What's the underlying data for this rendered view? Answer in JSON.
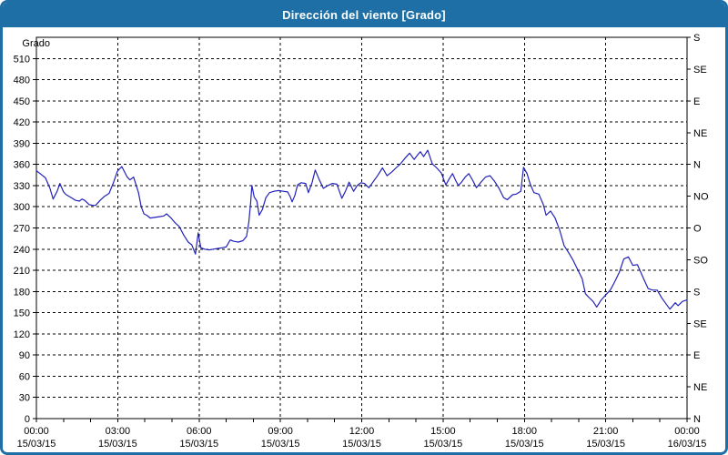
{
  "window": {
    "title": "Dirección del viento [Grado]"
  },
  "theme": {
    "titlebar_bg": "#1d6fa5",
    "frame_border": "#1d6fa5",
    "plot_bg": "#ffffff",
    "grid_color": "#000000",
    "axis_color": "#000000",
    "line_color": "#2222bb",
    "title_text_color": "#ffffff",
    "label_text_color": "#000000"
  },
  "chart_data": {
    "type": "line",
    "title": "Dirección del viento [Grado]",
    "ylabel_left": "Grado",
    "ylim": [
      0,
      540
    ],
    "y_left_ticks": [
      0,
      30,
      60,
      90,
      120,
      150,
      180,
      210,
      240,
      270,
      300,
      330,
      360,
      390,
      420,
      450,
      480,
      510
    ],
    "y_right_ticks": [
      {
        "value": 0,
        "label": "N"
      },
      {
        "value": 45,
        "label": "NE"
      },
      {
        "value": 90,
        "label": "E"
      },
      {
        "value": 135,
        "label": "SE"
      },
      {
        "value": 180,
        "label": "S"
      },
      {
        "value": 225,
        "label": "SO"
      },
      {
        "value": 270,
        "label": "O"
      },
      {
        "value": 315,
        "label": "NO"
      },
      {
        "value": 360,
        "label": "N"
      },
      {
        "value": 405,
        "label": "NE"
      },
      {
        "value": 450,
        "label": "E"
      },
      {
        "value": 495,
        "label": "SE"
      },
      {
        "value": 540,
        "label": "S"
      }
    ],
    "x_hours_range": [
      0,
      24
    ],
    "x_minor_tick_every_hours": 1,
    "x_major_ticks": [
      {
        "hour": 0,
        "time": "00:00",
        "date": "15/03/15"
      },
      {
        "hour": 3,
        "time": "03:00",
        "date": "15/03/15"
      },
      {
        "hour": 6,
        "time": "06:00",
        "date": "15/03/15"
      },
      {
        "hour": 9,
        "time": "09:00",
        "date": "15/03/15"
      },
      {
        "hour": 12,
        "time": "12:00",
        "date": "15/03/15"
      },
      {
        "hour": 15,
        "time": "15:00",
        "date": "15/03/15"
      },
      {
        "hour": 18,
        "time": "18:00",
        "date": "15/03/15"
      },
      {
        "hour": 21,
        "time": "21:00",
        "date": "15/03/15"
      },
      {
        "hour": 24,
        "time": "00:00",
        "date": "16/03/15"
      }
    ],
    "grid": "dashed",
    "series": [
      {
        "name": "Dirección del viento",
        "unit": "Grado",
        "color": "#2222bb",
        "points": [
          [
            0,
            351
          ],
          [
            12,
            345
          ],
          [
            20,
            341
          ],
          [
            30,
            326
          ],
          [
            37,
            311
          ],
          [
            46,
            322
          ],
          [
            52,
            333
          ],
          [
            60,
            321
          ],
          [
            66,
            317
          ],
          [
            77,
            313
          ],
          [
            87,
            309
          ],
          [
            95,
            308
          ],
          [
            101,
            311
          ],
          [
            107,
            309
          ],
          [
            117,
            303
          ],
          [
            125,
            302
          ],
          [
            131,
            302
          ],
          [
            141,
            309
          ],
          [
            151,
            315
          ],
          [
            161,
            319
          ],
          [
            171,
            335
          ],
          [
            179,
            350
          ],
          [
            189,
            357
          ],
          [
            201,
            342
          ],
          [
            207,
            338
          ],
          [
            215,
            342
          ],
          [
            226,
            320
          ],
          [
            232,
            300
          ],
          [
            238,
            290
          ],
          [
            244,
            288
          ],
          [
            252,
            284
          ],
          [
            262,
            285
          ],
          [
            272,
            286
          ],
          [
            282,
            287
          ],
          [
            288,
            290
          ],
          [
            298,
            284
          ],
          [
            306,
            278
          ],
          [
            316,
            272
          ],
          [
            326,
            260
          ],
          [
            336,
            250
          ],
          [
            344,
            246
          ],
          [
            352,
            233
          ],
          [
            358,
            263
          ],
          [
            364,
            242
          ],
          [
            372,
            240
          ],
          [
            382,
            239
          ],
          [
            392,
            240
          ],
          [
            402,
            241
          ],
          [
            412,
            242
          ],
          [
            420,
            243
          ],
          [
            429,
            253
          ],
          [
            437,
            251
          ],
          [
            447,
            250
          ],
          [
            457,
            252
          ],
          [
            465,
            258
          ],
          [
            470,
            278
          ],
          [
            474,
            305
          ],
          [
            477,
            330
          ],
          [
            482,
            314
          ],
          [
            488,
            308
          ],
          [
            493,
            288
          ],
          [
            500,
            296
          ],
          [
            508,
            313
          ],
          [
            516,
            320
          ],
          [
            526,
            322
          ],
          [
            536,
            323
          ],
          [
            546,
            322
          ],
          [
            556,
            321
          ],
          [
            562,
            314
          ],
          [
            566,
            307
          ],
          [
            572,
            316
          ],
          [
            578,
            331
          ],
          [
            586,
            334
          ],
          [
            596,
            333
          ],
          [
            602,
            320
          ],
          [
            610,
            334
          ],
          [
            617,
            352
          ],
          [
            625,
            340
          ],
          [
            635,
            326
          ],
          [
            645,
            330
          ],
          [
            655,
            333
          ],
          [
            665,
            332
          ],
          [
            676,
            312
          ],
          [
            684,
            322
          ],
          [
            692,
            335
          ],
          [
            702,
            322
          ],
          [
            710,
            330
          ],
          [
            718,
            334
          ],
          [
            726,
            333
          ],
          [
            736,
            327
          ],
          [
            746,
            336
          ],
          [
            756,
            345
          ],
          [
            766,
            355
          ],
          [
            776,
            344
          ],
          [
            786,
            349
          ],
          [
            796,
            355
          ],
          [
            806,
            361
          ],
          [
            816,
            369
          ],
          [
            826,
            376
          ],
          [
            836,
            367
          ],
          [
            843,
            373
          ],
          [
            850,
            378
          ],
          [
            857,
            371
          ],
          [
            866,
            380
          ],
          [
            876,
            361
          ],
          [
            886,
            355
          ],
          [
            896,
            348
          ],
          [
            906,
            331
          ],
          [
            915,
            341
          ],
          [
            921,
            347
          ],
          [
            928,
            337
          ],
          [
            934,
            330
          ],
          [
            941,
            335
          ],
          [
            949,
            342
          ],
          [
            957,
            347
          ],
          [
            966,
            337
          ],
          [
            974,
            327
          ],
          [
            984,
            335
          ],
          [
            994,
            342
          ],
          [
            1004,
            344
          ],
          [
            1014,
            336
          ],
          [
            1024,
            326
          ],
          [
            1034,
            313
          ],
          [
            1042,
            310
          ],
          [
            1054,
            317
          ],
          [
            1062,
            318
          ],
          [
            1072,
            322
          ],
          [
            1078,
            356
          ],
          [
            1086,
            347
          ],
          [
            1093,
            332
          ],
          [
            1101,
            320
          ],
          [
            1112,
            318
          ],
          [
            1122,
            303
          ],
          [
            1128,
            288
          ],
          [
            1138,
            294
          ],
          [
            1148,
            284
          ],
          [
            1158,
            267
          ],
          [
            1168,
            245
          ],
          [
            1178,
            235
          ],
          [
            1188,
            224
          ],
          [
            1198,
            211
          ],
          [
            1208,
            198
          ],
          [
            1215,
            177
          ],
          [
            1222,
            172
          ],
          [
            1232,
            166
          ],
          [
            1240,
            158
          ],
          [
            1250,
            168
          ],
          [
            1260,
            175
          ],
          [
            1270,
            182
          ],
          [
            1280,
            194
          ],
          [
            1290,
            207
          ],
          [
            1300,
            226
          ],
          [
            1310,
            229
          ],
          [
            1320,
            217
          ],
          [
            1330,
            218
          ],
          [
            1344,
            198
          ],
          [
            1354,
            184
          ],
          [
            1364,
            182
          ],
          [
            1374,
            182
          ],
          [
            1384,
            171
          ],
          [
            1394,
            162
          ],
          [
            1402,
            155
          ],
          [
            1414,
            164
          ],
          [
            1420,
            160
          ],
          [
            1430,
            166
          ],
          [
            1440,
            168
          ]
        ]
      }
    ]
  }
}
